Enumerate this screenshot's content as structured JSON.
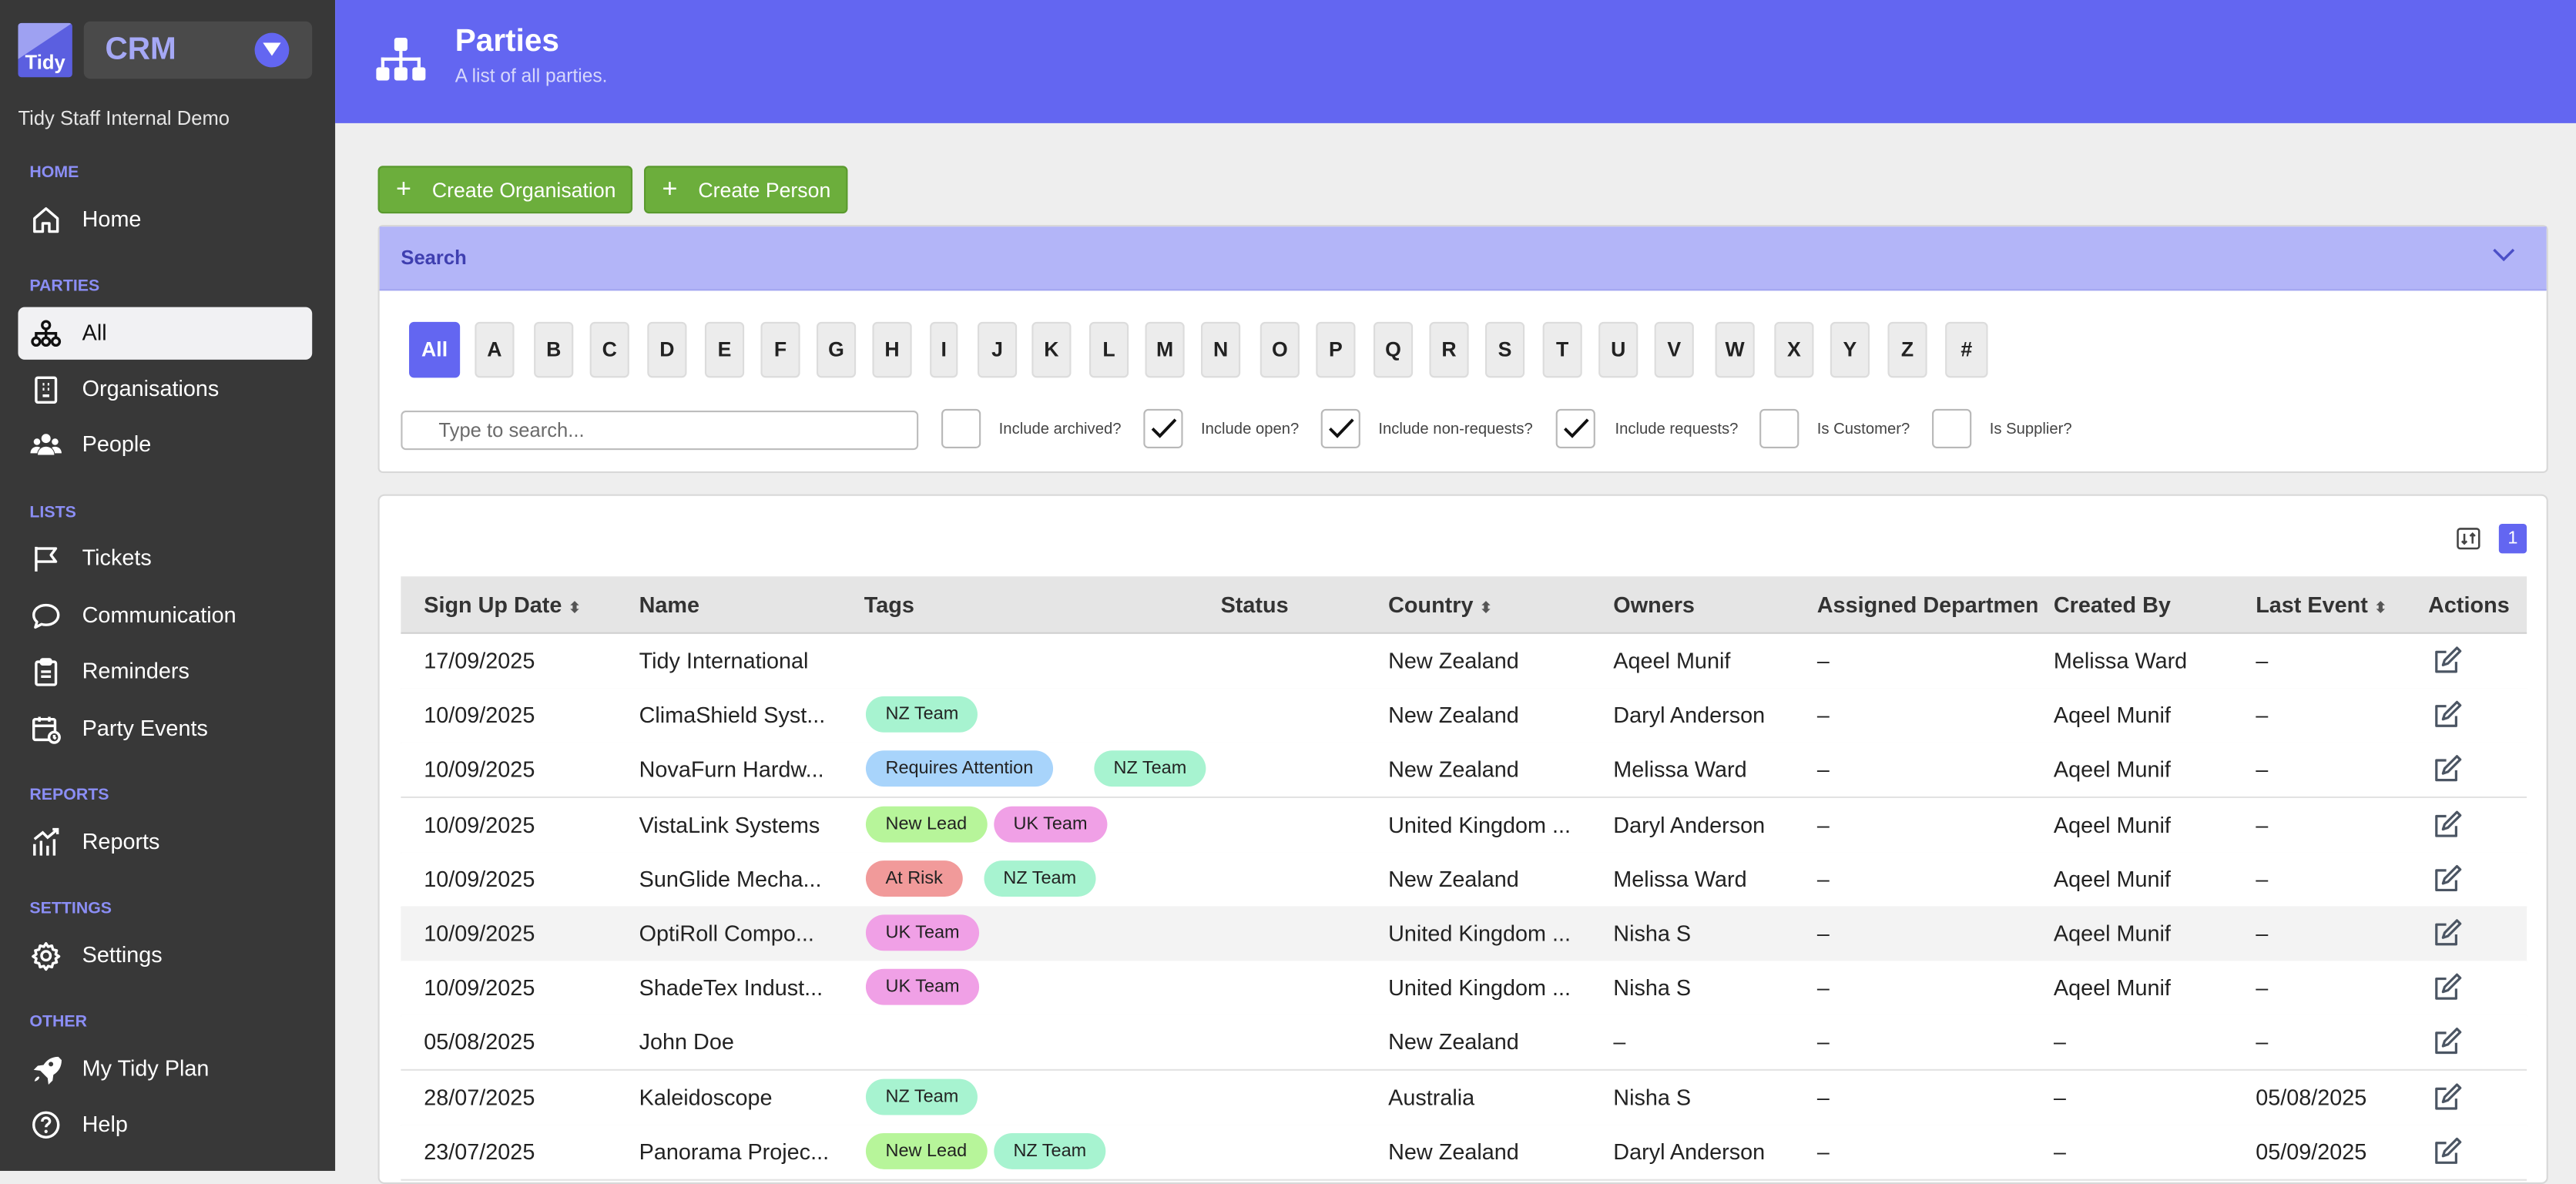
{
  "app": {
    "logo_text": "Tidy",
    "name": "CRM",
    "org": "Tidy Staff Internal Demo"
  },
  "sidebar": {
    "sections": [
      {
        "label": "HOME",
        "items": [
          {
            "label": "Home",
            "icon": "home-icon"
          }
        ]
      },
      {
        "label": "PARTIES",
        "items": [
          {
            "label": "All",
            "icon": "hierarchy-icon",
            "active": true
          },
          {
            "label": "Organisations",
            "icon": "building-icon"
          },
          {
            "label": "People",
            "icon": "people-icon"
          }
        ]
      },
      {
        "label": "LISTS",
        "items": [
          {
            "label": "Tickets",
            "icon": "flag-icon"
          },
          {
            "label": "Communication",
            "icon": "chat-icon"
          },
          {
            "label": "Reminders",
            "icon": "clipboard-icon"
          },
          {
            "label": "Party Events",
            "icon": "calendar-icon"
          }
        ]
      },
      {
        "label": "REPORTS",
        "items": [
          {
            "label": "Reports",
            "icon": "chart-icon"
          }
        ]
      },
      {
        "label": "SETTINGS",
        "items": [
          {
            "label": "Settings",
            "icon": "gear-icon"
          }
        ]
      },
      {
        "label": "OTHER",
        "items": [
          {
            "label": "My Tidy Plan",
            "icon": "rocket-icon"
          },
          {
            "label": "Help",
            "icon": "help-icon"
          }
        ]
      }
    ]
  },
  "header": {
    "title": "Parties",
    "subtitle": "A list of all parties."
  },
  "actions": {
    "create_org": "Create Organisation",
    "create_person": "Create Person"
  },
  "search": {
    "title": "Search",
    "letters": [
      "All",
      "A",
      "B",
      "C",
      "D",
      "E",
      "F",
      "G",
      "H",
      "I",
      "J",
      "K",
      "L",
      "M",
      "N",
      "O",
      "P",
      "Q",
      "R",
      "S",
      "T",
      "U",
      "V",
      "W",
      "X",
      "Y",
      "Z",
      "#"
    ],
    "active_letter": "All",
    "placeholder": "Type to search...",
    "filters": [
      {
        "label": "Include archived?",
        "checked": false
      },
      {
        "label": "Include open?",
        "checked": true
      },
      {
        "label": "Include non-requests?",
        "checked": true
      },
      {
        "label": "Include requests?",
        "checked": true
      },
      {
        "label": "Is Customer?",
        "checked": false
      },
      {
        "label": "Is Supplier?",
        "checked": false
      }
    ]
  },
  "table": {
    "page": "1",
    "columns": [
      "Sign Up Date",
      "Name",
      "Tags",
      "Status",
      "Country",
      "Owners",
      "Assigned Department",
      "Created By",
      "Last Event",
      "Actions"
    ],
    "sortable": [
      "Sign Up Date",
      "Country",
      "Last Event"
    ],
    "tag_colors": {
      "NZ Team": "#a7f3d0",
      "UK Team": "#f0a0e6",
      "Requires Attention": "#a8d4fb",
      "New Lead": "#b7f59a",
      "At Risk": "#f19a9a"
    },
    "rows": [
      {
        "date": "17/09/2025",
        "name": "Tidy International",
        "tags": [],
        "status": "",
        "country": "New Zealand",
        "owners": "Aqeel Munif",
        "dept": "–",
        "created_by": "Melissa Ward",
        "last_event": "–"
      },
      {
        "date": "10/09/2025",
        "name": "ClimaShield Syst...",
        "tags": [
          "NZ Team"
        ],
        "status": "",
        "country": "New Zealand",
        "owners": "Daryl Anderson",
        "dept": "–",
        "created_by": "Aqeel Munif",
        "last_event": "–"
      },
      {
        "date": "10/09/2025",
        "name": "NovaFurn Hardw...",
        "tags": [
          "Requires Attention",
          "NZ Team"
        ],
        "status": "",
        "country": "New Zealand",
        "owners": "Melissa Ward",
        "dept": "–",
        "created_by": "Aqeel Munif",
        "last_event": "–"
      },
      {
        "date": "10/09/2025",
        "name": "VistaLink Systems",
        "tags": [
          "New Lead",
          "UK Team"
        ],
        "status": "",
        "country": "United Kingdom ...",
        "owners": "Daryl Anderson",
        "dept": "–",
        "created_by": "Aqeel Munif",
        "last_event": "–"
      },
      {
        "date": "10/09/2025",
        "name": "SunGlide Mecha...",
        "tags": [
          "At Risk",
          "NZ Team"
        ],
        "status": "",
        "country": "New Zealand",
        "owners": "Melissa Ward",
        "dept": "–",
        "created_by": "Aqeel Munif",
        "last_event": "–"
      },
      {
        "date": "10/09/2025",
        "name": "OptiRoll Compo...",
        "tags": [
          "UK Team"
        ],
        "status": "",
        "country": "United Kingdom ...",
        "owners": "Nisha S",
        "dept": "–",
        "created_by": "Aqeel Munif",
        "last_event": "–",
        "highlight": true
      },
      {
        "date": "10/09/2025",
        "name": "ShadeTex Indust...",
        "tags": [
          "UK Team"
        ],
        "status": "",
        "country": "United Kingdom ...",
        "owners": "Nisha S",
        "dept": "–",
        "created_by": "Aqeel Munif",
        "last_event": "–"
      },
      {
        "date": "05/08/2025",
        "name": "John Doe",
        "tags": [],
        "status": "",
        "country": "New Zealand",
        "owners": "–",
        "dept": "–",
        "created_by": "–",
        "last_event": "–"
      },
      {
        "date": "28/07/2025",
        "name": "Kaleidoscope",
        "tags": [
          "NZ Team"
        ],
        "status": "",
        "country": "Australia",
        "owners": "Nisha S",
        "dept": "–",
        "created_by": "–",
        "last_event": "05/08/2025"
      },
      {
        "date": "23/07/2025",
        "name": "Panorama Projec...",
        "tags": [
          "New Lead",
          "NZ Team"
        ],
        "status": "",
        "country": "New Zealand",
        "owners": "Daryl Anderson",
        "dept": "–",
        "created_by": "–",
        "last_event": "05/09/2025"
      }
    ]
  }
}
